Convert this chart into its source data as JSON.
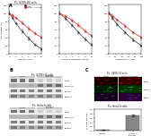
{
  "figure_bg": "#ffffff",
  "panel_A": {
    "title": "P.s. U2OS-H2 cells",
    "subplots": [
      {
        "xlabel": "cisplatin (μM)",
        "ylabel": "cell viability (%)",
        "xlim": [
          0,
          10
        ],
        "ylim": [
          0,
          120
        ],
        "xticks": [
          0,
          2,
          4,
          6,
          8,
          10
        ],
        "yticks": [
          0,
          20,
          40,
          60,
          80,
          100,
          120
        ],
        "lines": [
          {
            "label": "vector",
            "color": "#333333",
            "x": [
              0,
              1,
              2,
              4,
              6,
              8,
              10
            ],
            "y": [
              100,
              88,
              75,
              55,
              38,
              22,
              12
            ],
            "err": [
              3,
              3,
              3,
              4,
              4,
              3,
              2
            ]
          },
          {
            "label": "vector + FANCD2",
            "color": "#cc2222",
            "x": [
              0,
              1,
              2,
              4,
              6,
              8,
              10
            ],
            "y": [
              100,
              94,
              88,
              76,
              62,
              50,
              40
            ],
            "err": [
              3,
              3,
              3,
              4,
              4,
              3,
              3
            ]
          }
        ]
      },
      {
        "xlabel": "ionizing radiation (Grays)",
        "ylabel": "",
        "xlim": [
          0,
          10
        ],
        "ylim": [
          0,
          120
        ],
        "xticks": [
          0,
          2,
          4,
          6,
          8,
          10
        ],
        "yticks": [
          0,
          20,
          40,
          60,
          80,
          100,
          120
        ],
        "lines": [
          {
            "label": "vector",
            "color": "#333333",
            "x": [
              0,
              2,
              4,
              6,
              8,
              10
            ],
            "y": [
              100,
              86,
              70,
              52,
              36,
              22
            ],
            "err": [
              3,
              3,
              3,
              4,
              4,
              3
            ]
          },
          {
            "label": "vector + FANCD2",
            "color": "#cc2222",
            "x": [
              0,
              2,
              4,
              6,
              8,
              10
            ],
            "y": [
              100,
              92,
              82,
              70,
              56,
              44
            ],
            "err": [
              3,
              3,
              3,
              4,
              4,
              3
            ]
          }
        ]
      },
      {
        "xlabel": "mitomycin C (nM)",
        "ylabel": "",
        "xlim": [
          0,
          100
        ],
        "ylim": [
          0,
          120
        ],
        "xticks": [
          0,
          20,
          40,
          60,
          80,
          100
        ],
        "yticks": [
          0,
          20,
          40,
          60,
          80,
          100,
          120
        ],
        "lines": [
          {
            "label": "vector",
            "color": "#333333",
            "x": [
              0,
              10,
              25,
              50,
              75,
              100
            ],
            "y": [
              100,
              87,
              72,
              52,
              34,
              20
            ],
            "err": [
              3,
              3,
              3,
              4,
              4,
              3
            ]
          },
          {
            "label": "vector + FANCD2",
            "color": "#cc2222",
            "x": [
              0,
              10,
              25,
              50,
              75,
              100
            ],
            "y": [
              100,
              93,
              83,
              68,
              52,
              40
            ],
            "err": [
              3,
              3,
              3,
              4,
              4,
              3
            ]
          }
        ]
      }
    ],
    "legend": [
      "vector",
      "vector + FANCD2"
    ],
    "legend_colors": [
      "#333333",
      "#cc2222"
    ]
  },
  "panel_B_top": {
    "title": "P.s. U2OS-H2 cells",
    "col_groups": [
      "vector",
      "vector +\nFANCD2"
    ],
    "n_lanes": 6,
    "row_labels": [
      "RAD51",
      "FANCD2-S/L",
      "B-ACTIN",
      "B-tubulin"
    ],
    "band_intensities": [
      [
        0.55,
        0.55,
        0.5,
        0.2,
        0.2,
        0.18
      ],
      [
        0.3,
        0.28,
        0.32,
        0.55,
        0.58,
        0.6
      ],
      [
        0.5,
        0.52,
        0.48,
        0.5,
        0.52,
        0.48
      ],
      [
        0.52,
        0.5,
        0.48,
        0.52,
        0.5,
        0.48
      ]
    ],
    "bg_light": "#e8e8e8",
    "bg_dark": "#bbbbbb"
  },
  "panel_B_bottom": {
    "title": "P.s. HeLa-S cells",
    "col_groups": [
      "vector",
      "vector +\nFANCD2"
    ],
    "n_lanes": 6,
    "row_labels": [
      "RAD51",
      "FANCD2-S/L",
      "B-ACTIN",
      "B-tubulin"
    ],
    "band_intensities": [
      [
        0.55,
        0.55,
        0.5,
        0.2,
        0.2,
        0.18
      ],
      [
        0.3,
        0.28,
        0.32,
        0.55,
        0.58,
        0.6
      ],
      [
        0.5,
        0.52,
        0.48,
        0.5,
        0.52,
        0.48
      ],
      [
        0.52,
        0.5,
        0.48,
        0.52,
        0.5,
        0.48
      ]
    ],
    "bg_light": "#e8e8e8",
    "bg_dark": "#bbbbbb"
  },
  "panel_C_top": {
    "title": "P.s. U2OS-H2 cells",
    "col_labels": [
      "vector",
      "vector + FANCD2"
    ],
    "row_labels": [
      "RAD51",
      "FANCD2",
      "merge"
    ],
    "cell_colors": [
      [
        "#1a0000",
        "#3a0000"
      ],
      [
        "#001a00",
        "#003500"
      ],
      [
        "#15001a",
        "#280035"
      ]
    ],
    "spot_colors": [
      [
        "#cc2222",
        "#dd3333"
      ],
      [
        "#22cc22",
        "#33dd33"
      ],
      [
        "#8822cc",
        "#9933dd"
      ]
    ]
  },
  "panel_C_bottom": {
    "title": "P.s. HeLa-S cells",
    "categories": [
      "vector",
      "vector +\nFANCD2"
    ],
    "values": [
      0.05,
      0.72
    ],
    "bar_colors": [
      "#bbbbbb",
      "#888888"
    ],
    "ylabel": "FANCD2 foci/cell",
    "ylim": [
      0,
      1.0
    ],
    "yticks": [
      0.0,
      0.2,
      0.4,
      0.6,
      0.8,
      1.0
    ],
    "error": [
      0.01,
      0.04
    ]
  }
}
